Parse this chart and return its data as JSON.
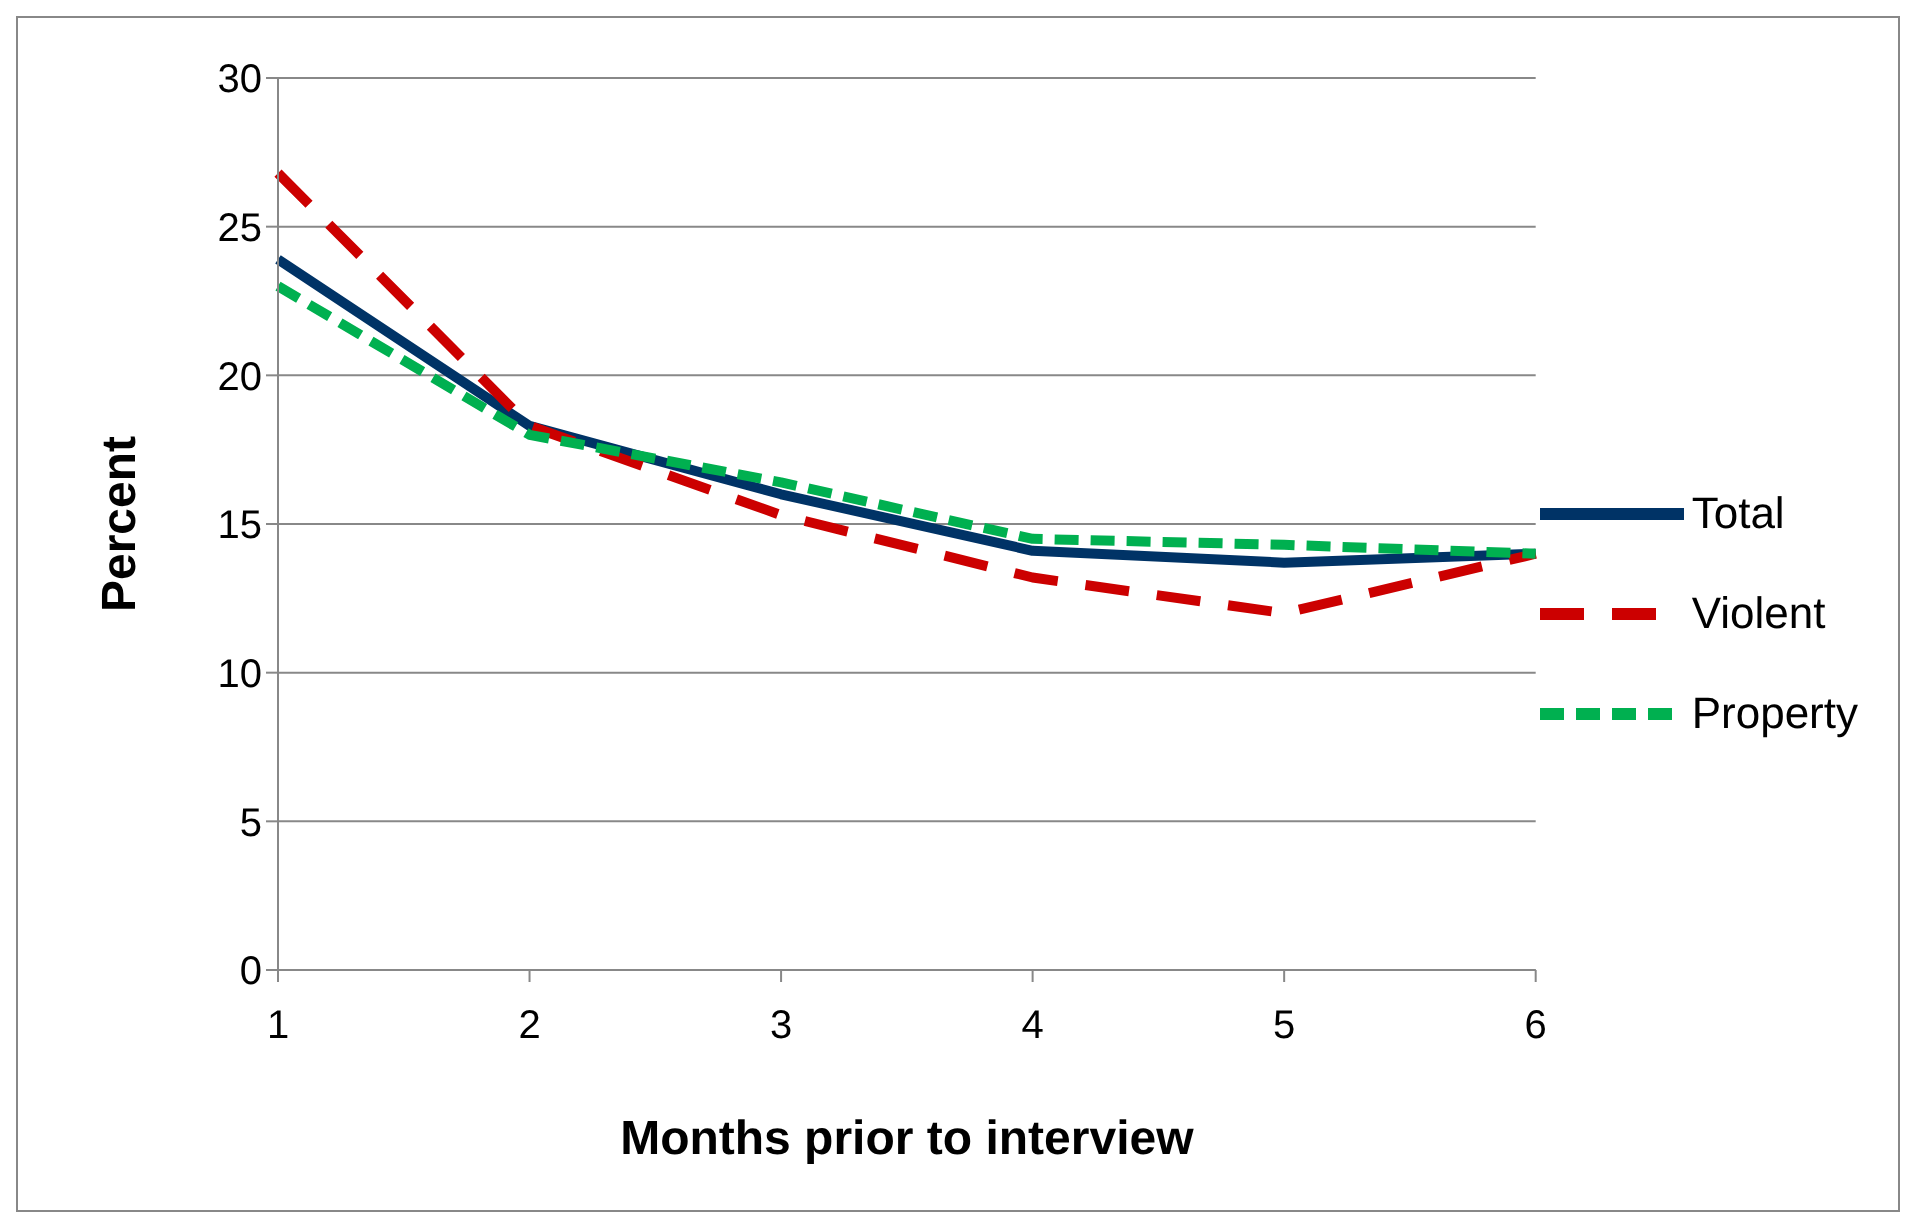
{
  "chart_data": {
    "type": "line",
    "xlabel": "Months prior to interview",
    "ylabel": "Percent",
    "categories": [
      "1",
      "2",
      "3",
      "4",
      "5",
      "6"
    ],
    "series": [
      {
        "name": "Total",
        "color": "#003366",
        "line_style": "solid",
        "values": [
          23.9,
          18.3,
          16.0,
          14.1,
          13.7,
          14.0
        ]
      },
      {
        "name": "Violent",
        "color": "#cc0000",
        "line_style": "dashed",
        "values": [
          26.8,
          18.3,
          15.3,
          13.2,
          12.0,
          14.0
        ]
      },
      {
        "name": "Property",
        "color": "#00b050",
        "line_style": "dashed",
        "values": [
          23.0,
          18.0,
          16.4,
          14.5,
          14.3,
          14.0
        ]
      }
    ],
    "ylim": [
      0,
      30
    ],
    "yticks": [
      0,
      5,
      10,
      15,
      20,
      25,
      30
    ],
    "grid": "y",
    "legend": "right",
    "marker": "none"
  }
}
